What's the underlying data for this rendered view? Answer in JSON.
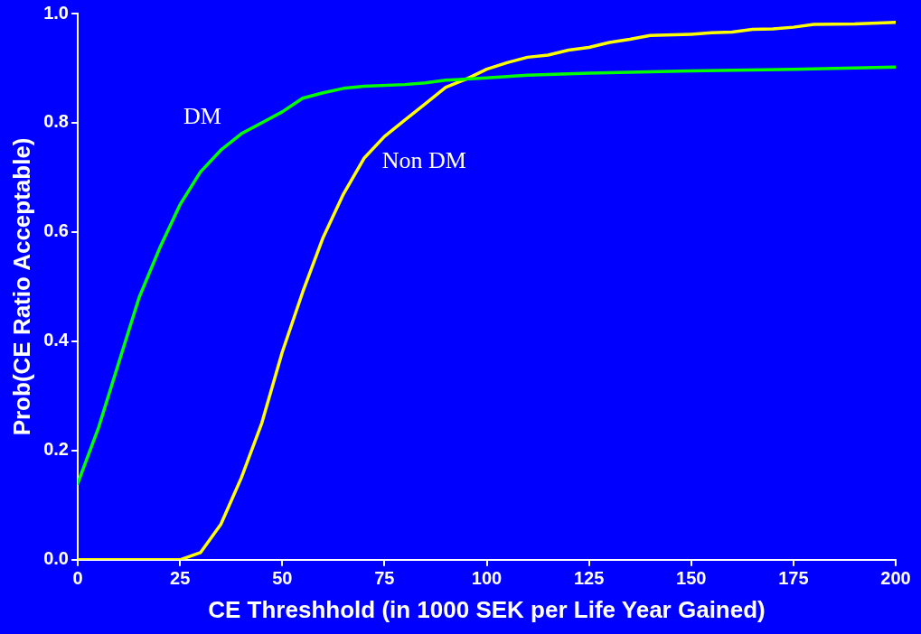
{
  "chart_data": {
    "type": "line",
    "xlabel": "CE Threshhold (in 1000 SEK per Life Year Gained)",
    "ylabel": "Prob(CE Ratio Acceptable)",
    "xlim": [
      0,
      200
    ],
    "xticks": [
      0,
      25,
      50,
      75,
      100,
      125,
      150,
      175,
      200
    ],
    "ylim": [
      0,
      1
    ],
    "yticks": [
      {
        "value": 0,
        "label": "0.0"
      },
      {
        "value": 0.2,
        "label": "0.2"
      },
      {
        "value": 0.4,
        "label": "0.4"
      },
      {
        "value": 0.6,
        "label": "0.6"
      },
      {
        "value": 0.8,
        "label": "0.8"
      },
      {
        "value": 1,
        "label": "1.0"
      }
    ],
    "grid": false,
    "legend": false,
    "marker": "none",
    "line_style": "solid",
    "series": [
      {
        "name": "DM",
        "color": "#00ff00",
        "x": [
          0,
          5,
          10,
          15,
          20,
          25,
          30,
          35,
          40,
          45,
          50,
          55,
          60,
          65,
          70,
          80,
          85,
          90,
          100,
          110,
          125,
          150,
          175,
          200
        ],
        "values": [
          0.14,
          0.24,
          0.36,
          0.48,
          0.57,
          0.65,
          0.71,
          0.75,
          0.78,
          0.8,
          0.82,
          0.845,
          0.855,
          0.863,
          0.867,
          0.87,
          0.873,
          0.878,
          0.882,
          0.887,
          0.891,
          0.895,
          0.898,
          0.902
        ]
      },
      {
        "name": "Non DM",
        "color": "#ffff00",
        "x": [
          0,
          25,
          30,
          35,
          40,
          45,
          50,
          55,
          60,
          65,
          70,
          75,
          80,
          85,
          90,
          95,
          100,
          105,
          110,
          115,
          120,
          125,
          130,
          135,
          140,
          150,
          155,
          160,
          165,
          170,
          175,
          180,
          190,
          200
        ],
        "values": [
          0,
          0,
          0.013,
          0.065,
          0.15,
          0.25,
          0.38,
          0.49,
          0.59,
          0.67,
          0.735,
          0.775,
          0.805,
          0.835,
          0.865,
          0.88,
          0.898,
          0.91,
          0.92,
          0.924,
          0.933,
          0.938,
          0.947,
          0.953,
          0.96,
          0.962,
          0.965,
          0.966,
          0.971,
          0.972,
          0.975,
          0.98,
          0.981,
          0.984
        ]
      }
    ]
  }
}
